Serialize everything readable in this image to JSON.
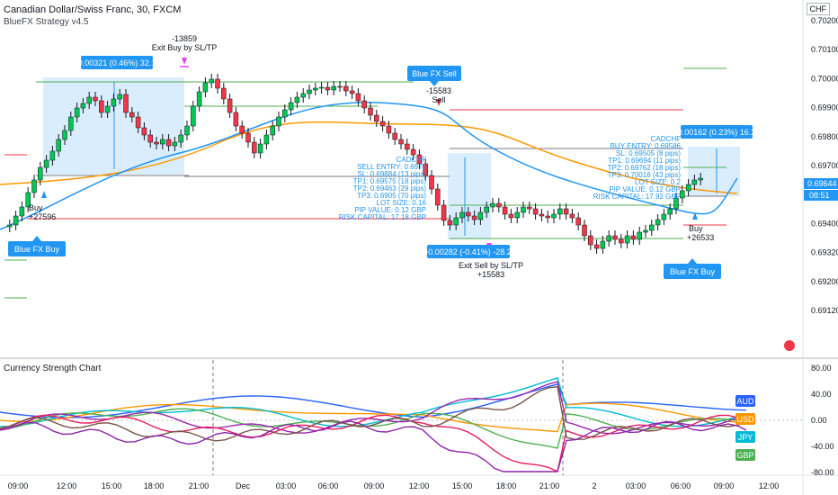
{
  "header": {
    "symbol_line": "Canadian Dollar/Swiss Franc, 30, FXCM",
    "strategy": "BlueFX Strategy v4.5",
    "currency_badge": "CHF"
  },
  "price_axis": {
    "labels": [
      "0.70200",
      "0.70100",
      "0.70000",
      "0.69900",
      "0.69800",
      "0.69700",
      "0.69500",
      "0.69400",
      "0.69320",
      "0.69200",
      "0.69120"
    ],
    "current_price": "0.69644",
    "countdown": "08:51"
  },
  "indicator": {
    "title": "Currency Strength Chart",
    "axis_labels": [
      "80.00",
      "40.00",
      "0.00",
      "-40.00",
      "-80.00"
    ],
    "badges": [
      {
        "label": "AUD",
        "color": "#2962ff"
      },
      {
        "label": "USD",
        "color": "#ff9800"
      },
      {
        "label": "JPY",
        "color": "#00bcd4"
      },
      {
        "label": "GBP",
        "color": "#4caf50"
      }
    ]
  },
  "time_axis": [
    "09:00",
    "12:00",
    "15:00",
    "18:00",
    "21:00",
    "Dec",
    "03:00",
    "06:00",
    "09:00",
    "12:00",
    "15:00",
    "18:00",
    "21:00",
    "2",
    "03:00",
    "06:00",
    "09:00",
    "12:00"
  ],
  "annotations": {
    "left_box_label": "0.00321 (0.46%) 32.1",
    "mid_box_label": "-0.00282 (-0.41%) -28.2",
    "right_box_label": "0.00162 (0.23%) 16.2",
    "exit_buy_value": "-13859",
    "exit_buy_text": "Exit Buy by SL/TP",
    "sell_value": "-15583",
    "sell_text": "Sell",
    "buy1_text": "Buy",
    "buy1_value": "+27596",
    "buy2_text": "Buy",
    "buy2_value": "+26533",
    "exit_sell_text": "Exit Sell by SL/TP",
    "exit_sell_value": "+15583",
    "signal_buy1": "Blue FX Buy",
    "signal_sell": "Blue FX Sell",
    "signal_buy2": "Blue FX Buy",
    "sell_info": [
      "CADCHF",
      "SELL ENTRY: 0.6975",
      "SL: 0.69884 (13 pips)",
      "TP1: 0.69575 (18 pips)",
      "TP2: 0.69463 (29 pips)",
      "TP3: 0.6905 (70 pips)",
      "LOT SIZE: 0.16",
      "PIP VALUE: 0.12 GBP",
      "RISK CAPITAL: 17.18 GBP"
    ],
    "buy_info": [
      "CADCHF",
      "BUY ENTRY: 0.69586",
      "SL: 0.69505 (8 pips)",
      "TP1: 0.69694 (11 pips)",
      "TP2: 0.69762 (18 pips)",
      "TP3: 0.70016 (43 pips)",
      "LOT SIZE: 0.2",
      "PIP VALUE: 0.12 GBP",
      "RISK CAPITAL: 17.92 GBP"
    ]
  },
  "colors": {
    "up": "#26a69a",
    "up_fill": "#00c853",
    "down": "#f23645",
    "box": "#bbdefb",
    "label_bg": "#2196f3",
    "ma_blue": "#2196f3",
    "ma_orange": "#ff9800"
  }
}
